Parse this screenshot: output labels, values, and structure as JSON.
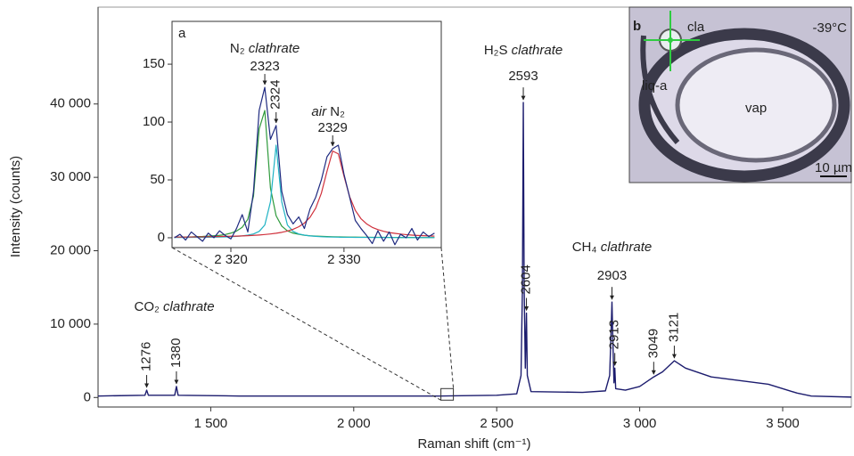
{
  "chart_data": [
    {
      "type": "line",
      "x_label": "Raman shift (cm⁻¹)",
      "y_label": "Intensity (counts)",
      "xlim": [
        1106,
        3740
      ],
      "ylim": [
        -1300,
        53200
      ],
      "xticks": [
        {
          "value": 1500,
          "label": "1 500"
        },
        {
          "value": 2000,
          "label": "2 000"
        },
        {
          "value": 2500,
          "label": "2 500"
        },
        {
          "value": 3000,
          "label": "3 000"
        },
        {
          "value": 3500,
          "label": "3 500"
        }
      ],
      "yticks": [
        0,
        {
          "value": 10000,
          "label": "10 000"
        },
        {
          "value": 20000,
          "label": "20 000"
        },
        {
          "value": 30000,
          "label": "30 000"
        },
        {
          "value": 40000,
          "label": "40 000"
        }
      ],
      "x": [
        1106,
        1270,
        1276,
        1282,
        1374,
        1380,
        1386,
        1600,
        2000,
        2300,
        2500,
        2570,
        2585,
        2590,
        2593,
        2596,
        2600,
        2604,
        2607,
        2620,
        2800,
        2880,
        2895,
        2900,
        2903,
        2906,
        2910,
        2913,
        2916,
        2950,
        3000,
        3049,
        3080,
        3121,
        3160,
        3250,
        3350,
        3450,
        3550,
        3600,
        3740
      ],
      "series": [
        {
          "color": "#1c1c6e",
          "values": [
            200,
            300,
            1000,
            300,
            300,
            1500,
            300,
            200,
            200,
            200,
            300,
            500,
            3000,
            15000,
            40200,
            15000,
            4000,
            11500,
            3000,
            800,
            700,
            900,
            3000,
            9000,
            13000,
            8000,
            2000,
            4000,
            1200,
            1000,
            1500,
            2800,
            3500,
            5000,
            4000,
            2800,
            2300,
            1800,
            600,
            200,
            50
          ]
        }
      ],
      "peak_labels": [
        1276,
        1380,
        2593,
        2604,
        2903,
        2913,
        3049,
        3121
      ],
      "group_labels": [
        {
          "formula": "CO₂",
          "name": "clathrate"
        },
        {
          "formula": "H₂S",
          "name": "clathrate"
        },
        {
          "formula": "CH₄",
          "name": "clathrate"
        }
      ]
    },
    {
      "type": "line",
      "panel": "a",
      "xlim": [
        2314.8,
        2338.6
      ],
      "ylim": [
        -8.5,
        187
      ],
      "xticks": [
        {
          "value": 2320,
          "label": "2 320"
        },
        {
          "value": 2330,
          "label": "2 330"
        }
      ],
      "yticks": [
        0,
        50,
        100,
        150
      ],
      "x": [
        2315,
        2315.5,
        2316,
        2316.5,
        2317,
        2317.5,
        2318,
        2318.5,
        2319,
        2319.5,
        2320,
        2320.5,
        2321,
        2321.5,
        2322,
        2322.5,
        2323,
        2323.5,
        2324,
        2324.5,
        2325,
        2325.5,
        2326,
        2326.5,
        2327,
        2327.5,
        2328,
        2328.5,
        2329,
        2329.5,
        2330,
        2330.5,
        2331,
        2331.5,
        2332,
        2332.5,
        2333,
        2333.5,
        2334,
        2334.5,
        2335,
        2335.5,
        2336,
        2336.5,
        2337,
        2337.5,
        2338
      ],
      "series": [
        {
          "color": "#1f2a80",
          "values": [
            0,
            3,
            -2,
            5,
            1,
            -3,
            4,
            0,
            6,
            2,
            -1,
            8,
            20,
            5,
            40,
            110,
            130,
            85,
            97,
            40,
            20,
            12,
            18,
            8,
            25,
            35,
            50,
            70,
            77,
            80,
            55,
            35,
            15,
            8,
            2,
            -5,
            6,
            -3,
            5,
            -6,
            3,
            0,
            8,
            -2,
            5,
            1,
            4
          ]
        },
        {
          "color": "#2e9a3c",
          "values": [
            0.5,
            0.6,
            0.7,
            0.8,
            1,
            1.1,
            1.4,
            1.7,
            2.1,
            2.8,
            4,
            5.8,
            9,
            16,
            36,
            94,
            110,
            43,
            19,
            10,
            6,
            4,
            3,
            2.2,
            1.7,
            1.4,
            1.2,
            1,
            0.9,
            0.8,
            0.7,
            0.6,
            0.6,
            0.5,
            0.5,
            0.4,
            0.4,
            0.4,
            0.3,
            0.3,
            0.3,
            0.3,
            0.3,
            0.2,
            0.2,
            0.2,
            0.2
          ]
        },
        {
          "color": "#1fb3c4",
          "values": [
            0.2,
            0.2,
            0.2,
            0.3,
            0.3,
            0.3,
            0.4,
            0.5,
            0.6,
            0.7,
            0.9,
            1.2,
            1.6,
            2.3,
            3.3,
            5.5,
            11,
            31,
            80,
            31,
            11,
            5.5,
            3.3,
            2.3,
            1.6,
            1.2,
            0.9,
            0.7,
            0.6,
            0.5,
            0.4,
            0.4,
            0.3,
            0.3,
            0.3,
            0.2,
            0.2,
            0.2,
            0.2,
            0.2,
            0.1,
            0.1,
            0.1,
            0.1,
            0.1,
            0.1,
            0.1
          ]
        },
        {
          "color": "#d0313c",
          "values": [
            0.6,
            0.6,
            0.6,
            0.7,
            0.7,
            0.8,
            0.9,
            1,
            1.1,
            1.2,
            1.3,
            1.4,
            1.6,
            1.8,
            2.1,
            2.4,
            2.8,
            3.3,
            3.9,
            4.7,
            5.8,
            7.3,
            9.5,
            12.7,
            17.7,
            25.6,
            38.5,
            57.5,
            74.9,
            72.5,
            53.3,
            35.5,
            23.7,
            16.5,
            12,
            9,
            7,
            5.6,
            4.5,
            3.8,
            3.2,
            2.7,
            2.3,
            2,
            1.8,
            1.6,
            1.4
          ]
        }
      ],
      "peak_labels": [
        2323,
        2324,
        2329
      ],
      "group_labels": [
        {
          "formula": "N₂",
          "name": "clathrate"
        },
        {
          "name": "air",
          "formula": "N₂"
        }
      ]
    }
  ],
  "photo": {
    "panel": "b",
    "temperature": "-39°C",
    "labels": [
      "cla",
      "liq-a",
      "vap"
    ],
    "scale_bar": "10 µm"
  }
}
